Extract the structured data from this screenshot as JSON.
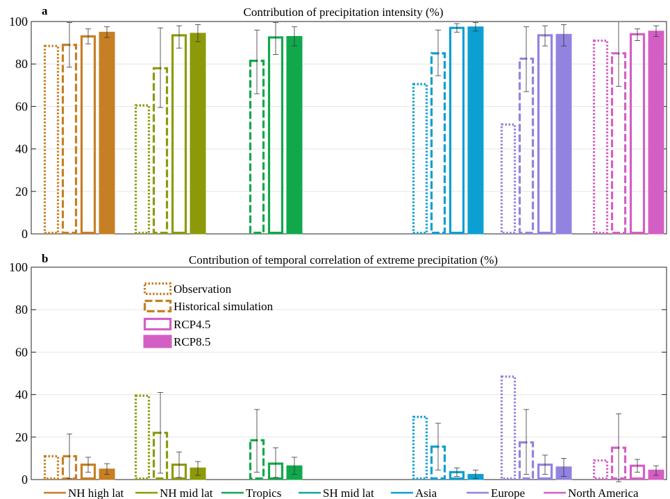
{
  "colors": {
    "NH high lat": "#c67f24",
    "NH mid lat": "#8c9a0a",
    "Tropics": "#11a84c",
    "SH mid lat": "#12a6a2",
    "Asia": "#0c9fd2",
    "Europe": "#9283e0",
    "North America": "#d45fc4"
  },
  "chart_data": [
    {
      "type": "bar",
      "panel": "a",
      "title": "Contribution of precipitation intensity (%)",
      "ylim": [
        0,
        100
      ],
      "yticks": [
        0,
        20,
        40,
        60,
        80,
        100
      ],
      "grid": true,
      "categories": [
        "NH high lat",
        "NH mid lat",
        "Tropics",
        "SH mid lat",
        "Asia",
        "Europe",
        "North America"
      ],
      "series": [
        {
          "name": "Observation",
          "style": "dotted",
          "values": [
            88.5,
            60.5,
            null,
            null,
            70.5,
            51.5,
            91
          ]
        },
        {
          "name": "Historical simulation",
          "style": "dashed",
          "values": [
            89,
            78,
            81.5,
            null,
            85,
            82.5,
            85
          ],
          "err_low": [
            78.5,
            59.5,
            66,
            null,
            74.5,
            67,
            69.5
          ],
          "err_high": [
            99.5,
            97,
            96,
            null,
            96,
            97.5,
            100.5
          ]
        },
        {
          "name": "RCP4.5",
          "style": "open",
          "values": [
            93,
            93.5,
            92.5,
            null,
            97,
            93.5,
            94
          ],
          "err_low": [
            89.5,
            87.5,
            84.5,
            null,
            95,
            88.5,
            91
          ],
          "err_high": [
            96.5,
            98,
            99.5,
            null,
            99,
            98,
            96.5
          ]
        },
        {
          "name": "RCP8.5",
          "style": "filled",
          "values": [
            95,
            94.5,
            93,
            null,
            97.5,
            94,
            95.5
          ],
          "err_low": [
            92.5,
            90.5,
            88.5,
            null,
            95.5,
            88.5,
            93
          ],
          "err_high": [
            97.5,
            98.5,
            97.5,
            null,
            99.5,
            98.5,
            98
          ]
        }
      ]
    },
    {
      "type": "bar",
      "panel": "b",
      "title": "Contribution of temporal correlation of extreme precipitation (%)",
      "ylim": [
        0,
        100
      ],
      "yticks": [
        0,
        20,
        40,
        60,
        80,
        100
      ],
      "grid": true,
      "categories": [
        "NH high lat",
        "NH mid lat",
        "Tropics",
        "SH mid lat",
        "Asia",
        "Europe",
        "North America"
      ],
      "series": [
        {
          "name": "Observation",
          "style": "dotted",
          "values": [
            11,
            39.5,
            null,
            null,
            29.5,
            48.5,
            9
          ]
        },
        {
          "name": "Historical simulation",
          "style": "dashed",
          "values": [
            11,
            22,
            18.5,
            null,
            15.5,
            17.5,
            15
          ],
          "err_low": [
            0.5,
            3,
            3.5,
            null,
            4.5,
            2.5,
            -1
          ],
          "err_high": [
            21.5,
            41,
            33,
            null,
            26.5,
            33,
            31
          ]
        },
        {
          "name": "RCP4.5",
          "style": "open",
          "values": [
            7,
            7,
            7.5,
            null,
            3.5,
            7,
            6.5
          ],
          "err_low": [
            3.5,
            1,
            1,
            null,
            1.5,
            2.5,
            3.5
          ],
          "err_high": [
            10.5,
            13,
            15,
            null,
            5.5,
            11.5,
            9.5
          ]
        },
        {
          "name": "RCP8.5",
          "style": "filled",
          "values": [
            5,
            5.5,
            6.5,
            null,
            2.5,
            6,
            4.5
          ],
          "err_low": [
            2.5,
            2,
            2.5,
            null,
            0.5,
            1.5,
            2
          ],
          "err_high": [
            7.5,
            8.5,
            10.5,
            null,
            4.5,
            10,
            6.5
          ]
        }
      ]
    }
  ],
  "legend": {
    "entries": [
      "Observation",
      "Historical simulation",
      "RCP4.5",
      "RCP8.5"
    ],
    "regions": [
      "NH high lat",
      "NH mid lat",
      "Tropics",
      "SH mid lat",
      "Asia",
      "Europe",
      "North America"
    ]
  }
}
